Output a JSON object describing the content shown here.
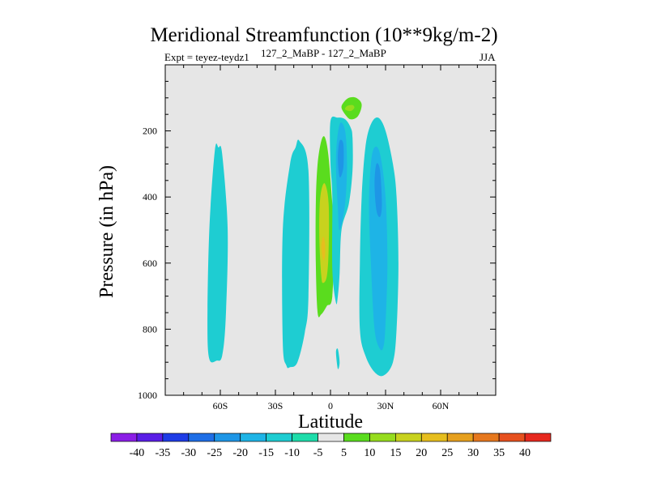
{
  "chart_data": {
    "type": "contour",
    "title": "Meridional Streamfunction (10**9kg/m-2)",
    "subtitle_left": "Expt = teyez-teydz1",
    "subtitle_center": "127_2_MaBP - 127_2_MaBP",
    "subtitle_right": "JJA",
    "xlabel": "Latitude",
    "ylabel": "Pressure (in hPa)",
    "xlim": [
      -90,
      90
    ],
    "ylim": [
      1000,
      0
    ],
    "x_ticks": [
      {
        "value": -60,
        "label": "60S"
      },
      {
        "value": -30,
        "label": "30S"
      },
      {
        "value": 0,
        "label": "0"
      },
      {
        "value": 30,
        "label": "30N"
      },
      {
        "value": 60,
        "label": "60N"
      }
    ],
    "y_ticks": [
      {
        "value": 200,
        "label": "200"
      },
      {
        "value": 400,
        "label": "400"
      },
      {
        "value": 600,
        "label": "600"
      },
      {
        "value": 800,
        "label": "800"
      },
      {
        "value": 1000,
        "label": "1000"
      }
    ],
    "contour_levels": [
      -40,
      -35,
      -30,
      -25,
      -20,
      -15,
      -10,
      -5,
      5,
      10,
      15,
      20,
      25,
      30,
      35,
      40
    ],
    "colorbar_colors": [
      "#8b1ee6",
      "#5a1ee6",
      "#1e3ce6",
      "#1e6ee6",
      "#1e96e6",
      "#1eb4e6",
      "#1ecdd2",
      "#1edcaa",
      "#e6e6e6",
      "#5adc1e",
      "#96dc1e",
      "#c8d21e",
      "#e6be1e",
      "#e6a01e",
      "#e6781e",
      "#e6501e",
      "#e6281e"
    ],
    "features": [
      {
        "name": "cell-60S",
        "min_level": -10,
        "outline": [
          [
            -66,
            890
          ],
          [
            -67,
            780
          ],
          [
            -66,
            500
          ],
          [
            -63,
            260
          ],
          [
            -61,
            250
          ],
          [
            -59,
            270
          ],
          [
            -56,
            500
          ],
          [
            -57,
            760
          ],
          [
            -59,
            880
          ],
          [
            -62,
            895
          ]
        ]
      },
      {
        "name": "cell-25S",
        "min_level": -10,
        "outline": [
          [
            -24,
            910
          ],
          [
            -26,
            840
          ],
          [
            -26,
            500
          ],
          [
            -22,
            300
          ],
          [
            -19,
            250
          ],
          [
            -17,
            230
          ],
          [
            -12,
            320
          ],
          [
            -12,
            700
          ],
          [
            -14,
            810
          ],
          [
            -18,
            900
          ],
          [
            -22,
            915
          ]
        ]
      },
      {
        "name": "green-band-eq",
        "min_level": 5,
        "outline": [
          [
            -7,
            750
          ],
          [
            -8,
            600
          ],
          [
            -8,
            420
          ],
          [
            -7,
            300
          ],
          [
            -5,
            230
          ],
          [
            -3,
            220
          ],
          [
            -1,
            280
          ],
          [
            1,
            420
          ],
          [
            2,
            500
          ],
          [
            1,
            700
          ],
          [
            -2,
            730
          ],
          [
            -5,
            755
          ]
        ]
      },
      {
        "name": "yellow-core-eq",
        "min_level": 15,
        "outline": [
          [
            -5,
            640
          ],
          [
            -6,
            540
          ],
          [
            -6,
            440
          ],
          [
            -5,
            380
          ],
          [
            -3,
            360
          ],
          [
            -1,
            420
          ],
          [
            -1,
            560
          ],
          [
            -2,
            640
          ],
          [
            -4,
            660
          ]
        ]
      },
      {
        "name": "orange-core-eq",
        "min_level": 20,
        "outline": [
          [
            -4,
            590
          ],
          [
            -5,
            550
          ],
          [
            -4,
            520
          ],
          [
            -3,
            540
          ],
          [
            -3,
            580
          ]
        ]
      },
      {
        "name": "cell-8N",
        "min_level": -10,
        "outline": [
          [
            3,
            720
          ],
          [
            1,
            620
          ],
          [
            1,
            400
          ],
          [
            0,
            300
          ],
          [
            0,
            170
          ],
          [
            4,
            160
          ],
          [
            8,
            165
          ],
          [
            11,
            190
          ],
          [
            12,
            220
          ],
          [
            12,
            320
          ],
          [
            10,
            420
          ],
          [
            6,
            500
          ],
          [
            5,
            630
          ],
          [
            4,
            700
          ]
        ]
      },
      {
        "name": "core-8N",
        "min_level": -15,
        "outline": [
          [
            5,
            500
          ],
          [
            4,
            430
          ],
          [
            3,
            280
          ],
          [
            5,
            180
          ],
          [
            8,
            200
          ],
          [
            9,
            300
          ],
          [
            8,
            420
          ]
        ]
      },
      {
        "name": "core-8N-inner",
        "min_level": -20,
        "outline": [
          [
            5,
            340
          ],
          [
            4,
            280
          ],
          [
            5,
            230
          ],
          [
            7,
            240
          ],
          [
            7,
            310
          ]
        ]
      },
      {
        "name": "green-blob-top",
        "min_level": 5,
        "outline": [
          [
            8,
            150
          ],
          [
            6,
            130
          ],
          [
            7,
            115
          ],
          [
            10,
            100
          ],
          [
            14,
            100
          ],
          [
            17,
            120
          ],
          [
            15,
            155
          ],
          [
            11,
            165
          ]
        ]
      },
      {
        "name": "green-blob-top-core",
        "min_level": 10,
        "outline": [
          [
            8,
            135
          ],
          [
            9,
            125
          ],
          [
            12,
            122
          ],
          [
            13,
            130
          ],
          [
            11,
            140
          ]
        ]
      },
      {
        "name": "streak-eq-low",
        "min_level": -10,
        "outline": [
          [
            4,
            920
          ],
          [
            3,
            870
          ],
          [
            4,
            860
          ],
          [
            5,
            900
          ]
        ]
      },
      {
        "name": "cell-30N",
        "min_level": -10,
        "outline": [
          [
            24,
            930
          ],
          [
            19,
            880
          ],
          [
            16,
            800
          ],
          [
            16,
            600
          ],
          [
            17,
            400
          ],
          [
            19,
            250
          ],
          [
            22,
            180
          ],
          [
            26,
            160
          ],
          [
            30,
            200
          ],
          [
            34,
            300
          ],
          [
            36,
            400
          ],
          [
            37,
            600
          ],
          [
            36,
            800
          ],
          [
            34,
            900
          ],
          [
            29,
            940
          ]
        ]
      },
      {
        "name": "core-30N",
        "min_level": -15,
        "outline": [
          [
            27,
            860
          ],
          [
            24,
            800
          ],
          [
            22,
            600
          ],
          [
            21,
            430
          ],
          [
            22,
            300
          ],
          [
            24,
            250
          ],
          [
            27,
            270
          ],
          [
            30,
            400
          ],
          [
            31,
            600
          ],
          [
            30,
            780
          ],
          [
            29,
            850
          ]
        ]
      },
      {
        "name": "core-30N-inner",
        "min_level": -20,
        "outline": [
          [
            25,
            440
          ],
          [
            24,
            360
          ],
          [
            25,
            300
          ],
          [
            27,
            320
          ],
          [
            28,
            420
          ],
          [
            27,
            460
          ]
        ]
      }
    ]
  }
}
